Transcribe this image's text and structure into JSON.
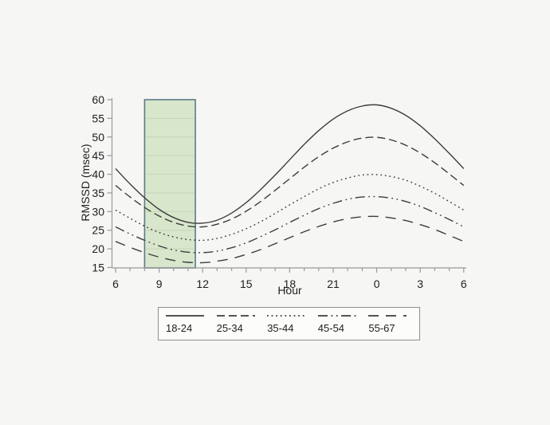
{
  "page": {
    "background": "#f6f6f5"
  },
  "chart_data": {
    "type": "line",
    "title": "",
    "xlabel": "Hour",
    "ylabel": "RMSSD (msec)",
    "x_hours": [
      6,
      7,
      8,
      9,
      10,
      11,
      12,
      13,
      14,
      15,
      16,
      17,
      18,
      19,
      20,
      21,
      22,
      23,
      24,
      25,
      26,
      27,
      28,
      29,
      30
    ],
    "x_tick_hours": [
      6,
      9,
      12,
      15,
      18,
      21,
      24,
      27,
      30
    ],
    "x_tick_labels": [
      "6",
      "9",
      "12",
      "15",
      "18",
      "21",
      "0",
      "3",
      "6"
    ],
    "x_minor_tick_every": 1,
    "y_ticks": [
      15,
      20,
      25,
      30,
      35,
      40,
      45,
      50,
      55,
      60
    ],
    "ylim": [
      15,
      60
    ],
    "grid": false,
    "line_color": "#3d3d3d",
    "axis_color": "#9a9a9a",
    "text_color": "#1e1e1e",
    "highlight_band": {
      "start_hour": 8,
      "end_hour": 11.5,
      "fill": "#d8e6cb",
      "border": "#5d7b87"
    },
    "series": [
      {
        "name": "18-24",
        "dash": "solid",
        "values": [
          41.5,
          37.4,
          33.7,
          30.6,
          28.4,
          27.1,
          26.9,
          27.7,
          29.6,
          32.4,
          35.9,
          39.8,
          43.9,
          48.0,
          51.7,
          54.8,
          57.0,
          58.3,
          58.6,
          57.7,
          55.8,
          53.0,
          49.5,
          45.6,
          41.5
        ]
      },
      {
        "name": "25-34",
        "dash": "dash",
        "values": [
          37.0,
          33.9,
          31.1,
          28.8,
          27.1,
          26.1,
          25.9,
          26.6,
          28.0,
          30.1,
          32.7,
          35.7,
          38.8,
          41.9,
          44.7,
          47.0,
          48.7,
          49.7,
          49.9,
          49.2,
          47.8,
          45.7,
          43.1,
          40.1,
          37.0
        ]
      },
      {
        "name": "35-44",
        "dash": "dot",
        "values": [
          30.4,
          28.2,
          26.1,
          24.4,
          23.2,
          22.5,
          22.3,
          22.8,
          23.9,
          25.4,
          27.3,
          29.5,
          31.8,
          34.0,
          36.1,
          37.8,
          39.0,
          39.8,
          39.9,
          39.4,
          38.4,
          36.8,
          34.9,
          32.7,
          30.4
        ]
      },
      {
        "name": "45-54",
        "dash": "dash-dot-dot",
        "values": [
          25.9,
          24.0,
          22.3,
          20.8,
          19.7,
          19.1,
          19.0,
          19.4,
          20.3,
          21.6,
          23.3,
          25.1,
          27.1,
          29.0,
          30.8,
          32.2,
          33.3,
          33.9,
          34.0,
          33.6,
          32.7,
          31.4,
          29.7,
          27.9,
          25.9
        ]
      },
      {
        "name": "55-67",
        "dash": "long-dash",
        "values": [
          22.0,
          20.4,
          19.0,
          17.8,
          16.9,
          16.4,
          16.3,
          16.7,
          17.4,
          18.5,
          19.8,
          21.4,
          23.0,
          24.6,
          26.0,
          27.2,
          28.1,
          28.6,
          28.7,
          28.3,
          27.6,
          26.5,
          25.2,
          23.6,
          22.0
        ]
      }
    ],
    "legend": {
      "position": "bottom",
      "entries": [
        "18-24",
        "25-34",
        "35-44",
        "45-54",
        "55-67"
      ]
    }
  }
}
